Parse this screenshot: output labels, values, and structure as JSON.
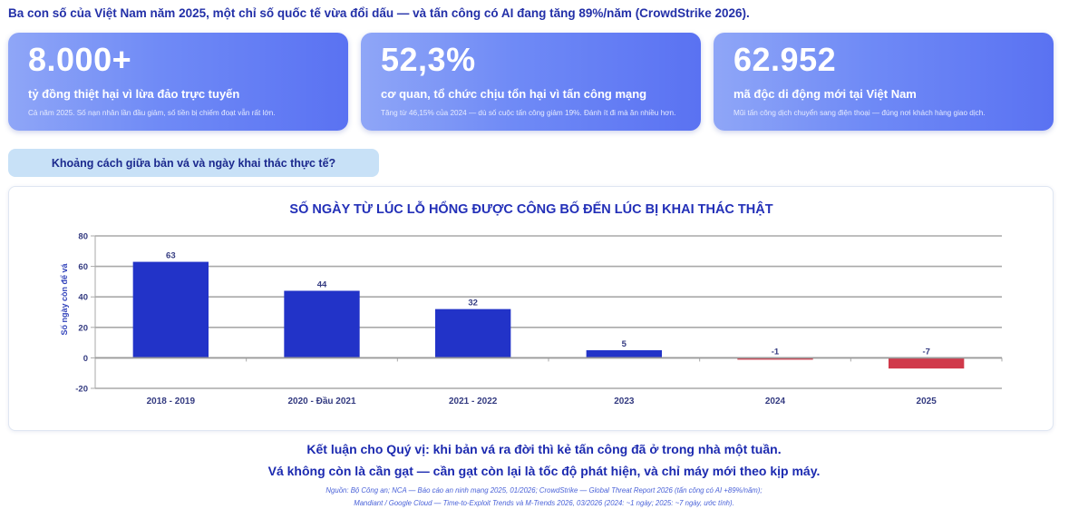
{
  "headline": "Ba con số của Việt Nam năm 2025, một chỉ số quốc tế vừa đổi dấu — và tấn công có AI đang tăng 89%/năm (CrowdStrike 2026).",
  "stats": [
    {
      "value": "8.000+",
      "label": "tỷ đồng thiệt hại vì lừa đảo trực tuyến",
      "note": "Cả năm 2025. Số nạn nhân lần đầu giảm, số tiền bị chiếm đoạt vẫn rất lớn."
    },
    {
      "value": "52,3%",
      "label": "cơ quan, tổ chức chịu tổn hại vì tấn công mạng",
      "note": "Tăng từ 46,15% của 2024 — dù số cuộc tấn công giảm 19%. Đánh ít đi mà ăn nhiều hơn."
    },
    {
      "value": "62.952",
      "label": "mã độc di động mới tại Việt Nam",
      "note": "Mũi tấn công dịch chuyển sang điện thoại — đúng nơi khách hàng giao dịch."
    }
  ],
  "question": "Khoảng cách giữa bản vá và ngày khai thác thực tế?",
  "chart_data": {
    "type": "bar",
    "title": "SỐ NGÀY TỪ LÚC LỖ HỔNG ĐƯỢC CÔNG BỐ ĐẾN LÚC BỊ KHAI THÁC THẬT",
    "ylabel": "Số ngày còn để vá",
    "xlabel": "",
    "categories": [
      "2018 - 2019",
      "2020 - Đầu 2021",
      "2021 - 2022",
      "2023",
      "2024",
      "2025"
    ],
    "values": [
      63,
      44,
      32,
      5,
      -1,
      -7
    ],
    "ylim": [
      -20,
      80
    ],
    "yticks": [
      -20,
      0,
      20,
      40,
      60,
      80
    ],
    "grid": true,
    "colors": {
      "positive": "#2233c8",
      "negative": "#d0394a"
    }
  },
  "conclusion": {
    "line1": "Kết luận cho Quý vị: khi bản vá ra đời thì kẻ tấn công đã ở trong nhà một tuần.",
    "line2": "Vá không còn là cần gạt — cần gạt còn lại là tốc độ phát hiện, và chỉ máy mới theo kịp máy."
  },
  "source": {
    "line1": "Nguồn: Bộ Công an; NCA — Báo cáo an ninh mạng 2025, 01/2026; CrowdStrike — Global Threat Report 2026 (tấn công có AI +89%/năm);",
    "line2": "Mandiant / Google Cloud — Time-to-Exploit Trends và M-Trends 2026, 03/2026 (2024: ~1 ngày; 2025: ~7 ngày, ước tính)."
  }
}
